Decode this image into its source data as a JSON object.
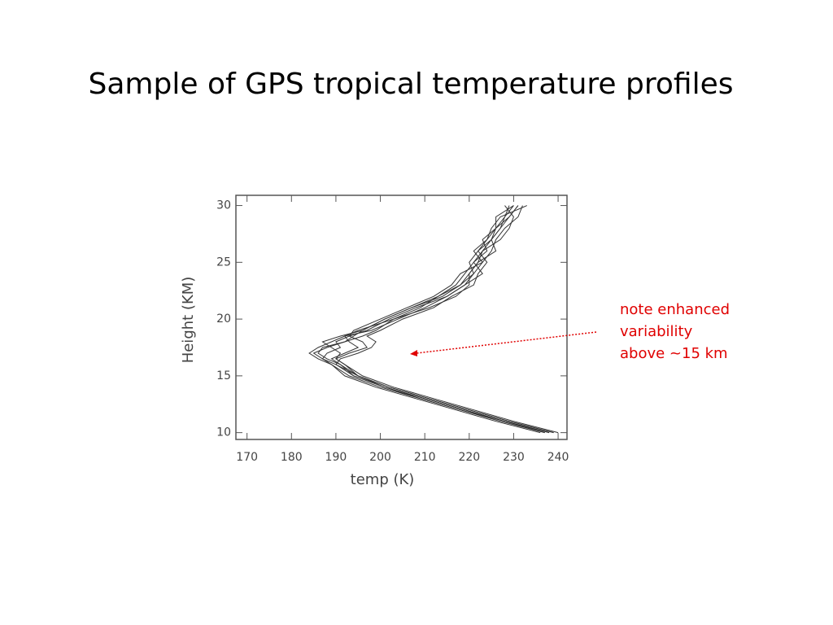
{
  "chart_data": {
    "type": "line",
    "title": "Sample of GPS tropical temperature profiles",
    "xlabel": "temp (K)",
    "ylabel": "Height (KM)",
    "annotation": [
      "note enhanced",
      "variability",
      "above ~15 km"
    ],
    "color": "#333333",
    "xlim": [
      167.5,
      242
    ],
    "ylim": [
      9.4,
      30.9
    ],
    "xticks": [
      170,
      180,
      190,
      200,
      210,
      220,
      230,
      240
    ],
    "yticks": [
      10,
      15,
      20,
      25,
      30
    ],
    "y": [
      10,
      11,
      12,
      13,
      14,
      15,
      16,
      16.5,
      17,
      17.5,
      18,
      18.5,
      19,
      20,
      21,
      22,
      23,
      24,
      25,
      26,
      27,
      28,
      29,
      30
    ],
    "series": [
      {
        "x": [
          239,
          229,
          220,
          211,
          202,
          195,
          190,
          187,
          185,
          188,
          192,
          194,
          196,
          201,
          207,
          214,
          218,
          220,
          222,
          223,
          225,
          226,
          228,
          230
        ]
      },
      {
        "x": [
          238,
          228,
          219,
          210,
          201,
          194,
          191,
          189,
          192,
          195,
          193,
          192,
          195,
          203,
          209,
          213,
          217,
          219,
          221,
          224,
          223,
          226,
          229,
          231
        ]
      },
      {
        "x": [
          237,
          227,
          218,
          209,
          200,
          193,
          189,
          186,
          184,
          186,
          189,
          192,
          198,
          204,
          210,
          215,
          219,
          221,
          220,
          222,
          225,
          227,
          228,
          229
        ]
      },
      {
        "x": [
          240,
          230,
          221,
          212,
          203,
          196,
          192,
          190,
          193,
          197,
          196,
          193,
          194,
          200,
          206,
          212,
          216,
          218,
          223,
          225,
          226,
          228,
          231,
          232
        ]
      },
      {
        "x": [
          238,
          228,
          219,
          210,
          201,
          194,
          190,
          191,
          195,
          198,
          199,
          197,
          200,
          205,
          212,
          216,
          221,
          222,
          224,
          222,
          224,
          225,
          227,
          233
        ]
      },
      {
        "x": [
          236,
          226,
          217,
          208,
          199,
          192,
          189,
          187,
          188,
          191,
          190,
          193,
          197,
          202,
          208,
          215,
          219,
          223,
          221,
          223,
          227,
          229,
          230,
          228
        ]
      },
      {
        "x": [
          239,
          229,
          220,
          211,
          202,
          195,
          191,
          188,
          186,
          187,
          192,
          196,
          199,
          203,
          211,
          217,
          220,
          220,
          222,
          226,
          225,
          227,
          229,
          231
        ]
      },
      {
        "x": [
          237,
          228,
          218,
          209,
          201,
          195,
          192,
          190,
          191,
          189,
          187,
          191,
          196,
          201,
          207,
          213,
          218,
          221,
          223,
          221,
          224,
          226,
          226,
          230
        ]
      }
    ]
  }
}
